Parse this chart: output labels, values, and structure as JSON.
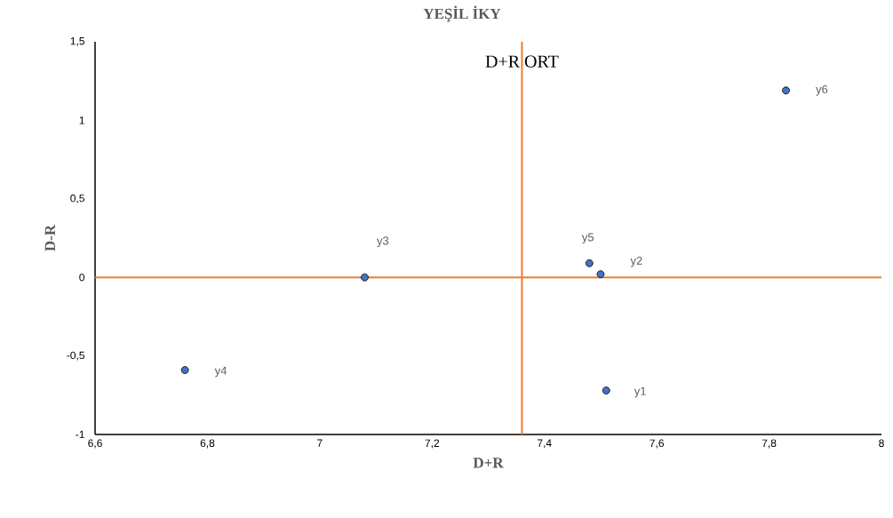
{
  "chart_data": {
    "type": "scatter",
    "title": "YEŞİL İKY",
    "xlabel": "D+R",
    "ylabel": "D-R",
    "x": [
      7.51,
      7.5,
      7.08,
      6.76,
      7.48,
      7.83
    ],
    "values": [
      -0.72,
      0.02,
      0,
      -0.59,
      0.09,
      1.19
    ],
    "color": "#4472c4",
    "marker": "circle",
    "xlim": [
      6.6,
      8
    ],
    "ylim": [
      -1,
      1.5
    ],
    "xticks": [
      {
        "value": 6.6,
        "label": "6,6"
      },
      {
        "value": 6.8,
        "label": "6,8"
      },
      7,
      {
        "value": 7.2,
        "label": "7,2"
      },
      {
        "value": 7.4,
        "label": "7,4"
      },
      {
        "value": 7.6,
        "label": "7,6"
      },
      {
        "value": 7.8,
        "label": "7,8"
      },
      8
    ],
    "yticks": [
      -1,
      {
        "value": -0.5,
        "label": "-0,5"
      },
      0,
      {
        "value": 0.5,
        "label": "0,5"
      },
      1,
      {
        "value": 1.5,
        "label": "1,5"
      }
    ],
    "ref_lines": [
      {
        "axis": "x",
        "value": 7.36,
        "label": "D+R ORT",
        "color": "#ed7d31"
      },
      {
        "axis": "y",
        "value": 0,
        "color": "#ed7d31"
      }
    ],
    "annotations": [
      {
        "text": "y1",
        "x": 7.51,
        "y": -0.72
      },
      {
        "text": "y2",
        "x": 7.5,
        "y": 0.02
      },
      {
        "text": "y3",
        "x": 7.08,
        "y": 0
      },
      {
        "text": "y4",
        "x": 6.76,
        "y": -0.59
      },
      {
        "text": "y5",
        "x": 7.48,
        "y": 0.09
      },
      {
        "text": "y6",
        "x": 7.83,
        "y": 1.19
      }
    ],
    "grid": false
  }
}
